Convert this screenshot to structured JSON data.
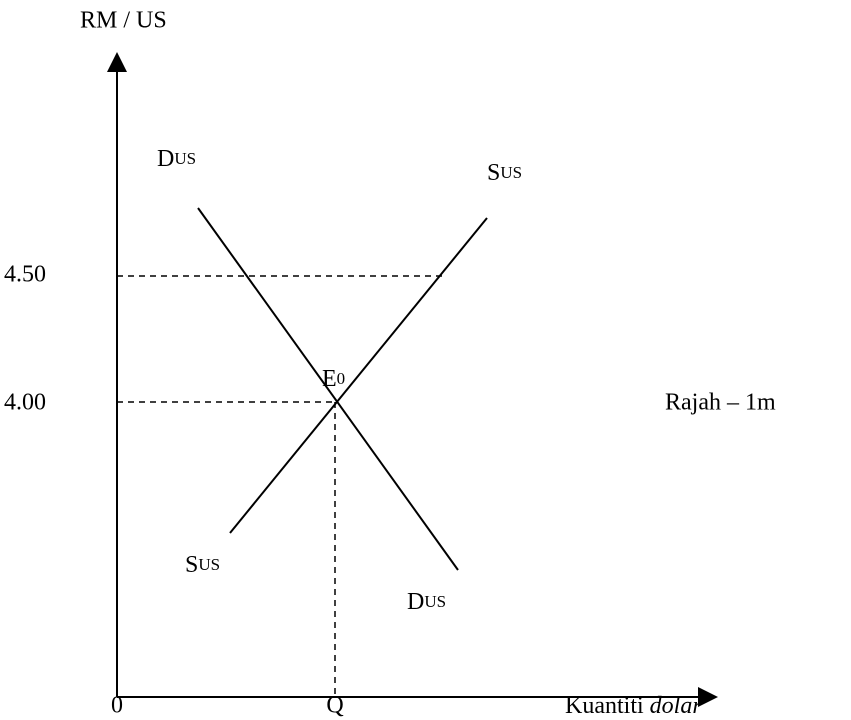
{
  "axes": {
    "y_label": "RM / US",
    "x_label": {
      "text": "Kuantiti ",
      "italic": "dolar"
    },
    "origin": "0",
    "q_label": "Q"
  },
  "price_labels": [
    "4.50",
    "4.00"
  ],
  "curves": [
    {
      "label": "D",
      "sub": "US"
    },
    {
      "label": "S",
      "sub": "US"
    },
    {
      "label": "S",
      "sub": "US"
    },
    {
      "label": "D",
      "sub": "US"
    }
  ],
  "equilibrium": {
    "label": "E",
    "sub": "0"
  },
  "caption": "Rajah – 1m"
}
